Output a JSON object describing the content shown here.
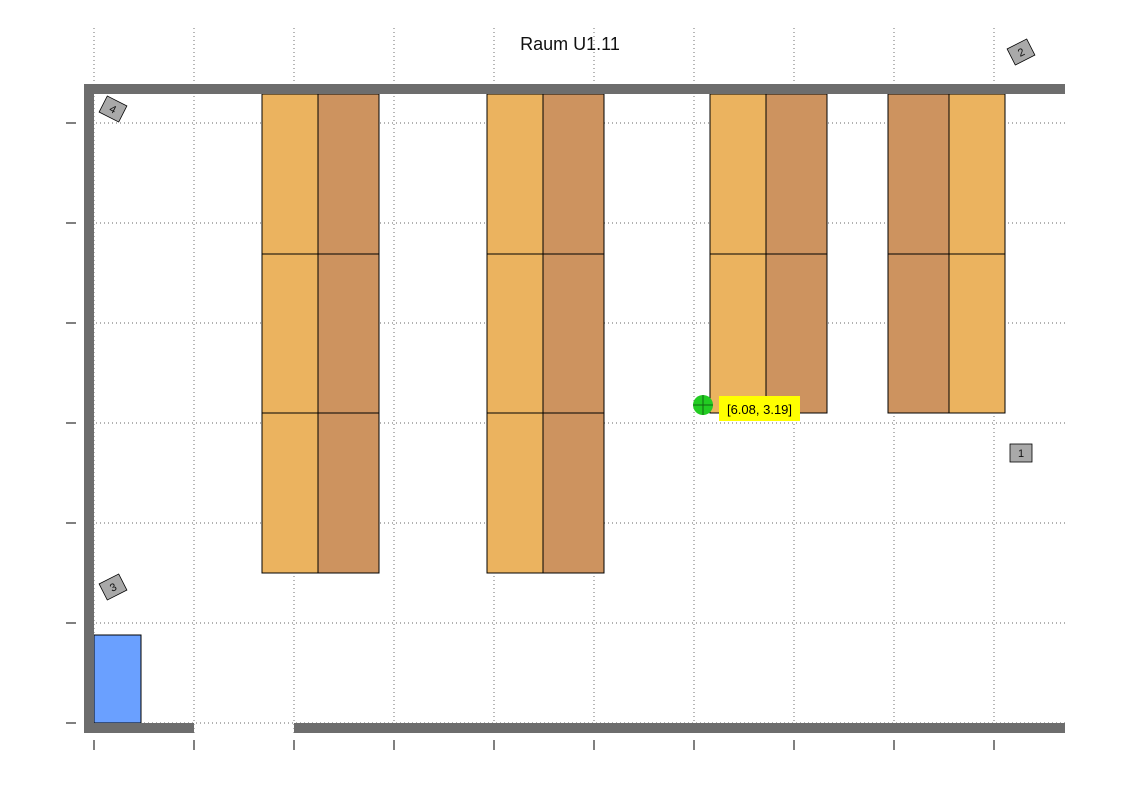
{
  "room": {
    "title": "Raum U1.11"
  },
  "colors": {
    "wall": "#6d6d6d",
    "desk_light": "#ebb35f",
    "desk_dark": "#cd935f",
    "cabinet": "#6aa0ff",
    "marker_fill": "#a9a9a9",
    "cursor": "#22cc22",
    "readout_bg": "#ffff00"
  },
  "markers": [
    {
      "label": "1"
    },
    {
      "label": "2"
    },
    {
      "label": "3"
    },
    {
      "label": "4"
    }
  ],
  "cursor_readout": {
    "text": "[6.08, 3.19]"
  },
  "icons": {
    "cursor": "crosshair-cursor-icon"
  }
}
